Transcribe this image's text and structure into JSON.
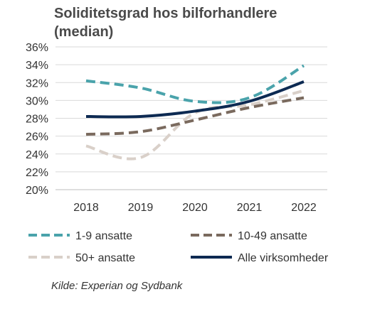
{
  "chart_data": {
    "type": "line",
    "title_line1": "Soliditetsgrad hos bilforhandlere",
    "title_line2": "(median)",
    "x": [
      "2018",
      "2019",
      "2020",
      "2021",
      "2022"
    ],
    "ylim": [
      20,
      36
    ],
    "yticks": [
      "20%",
      "22%",
      "24%",
      "26%",
      "28%",
      "30%",
      "32%",
      "34%",
      "36%"
    ],
    "grid": true,
    "legend_position": "bottom",
    "series": [
      {
        "name": "1-9 ansatte",
        "values": [
          32.2,
          31.4,
          29.9,
          30.3,
          33.9
        ],
        "color": "#4aa3ab",
        "dash": "dashed"
      },
      {
        "name": "10-49 ansatte",
        "values": [
          26.2,
          26.5,
          27.8,
          29.2,
          30.3
        ],
        "color": "#7a6a5e",
        "dash": "dashed"
      },
      {
        "name": "50+ ansatte",
        "values": [
          24.9,
          23.6,
          28.6,
          29.5,
          31.1
        ],
        "color": "#d9d0c9",
        "dash": "dashed"
      },
      {
        "name": "Alle virksomheder",
        "values": [
          28.2,
          28.2,
          28.8,
          29.9,
          32.1
        ],
        "color": "#0d2a52",
        "dash": "solid"
      }
    ],
    "source": "Kilde: Experian og Sydbank"
  }
}
